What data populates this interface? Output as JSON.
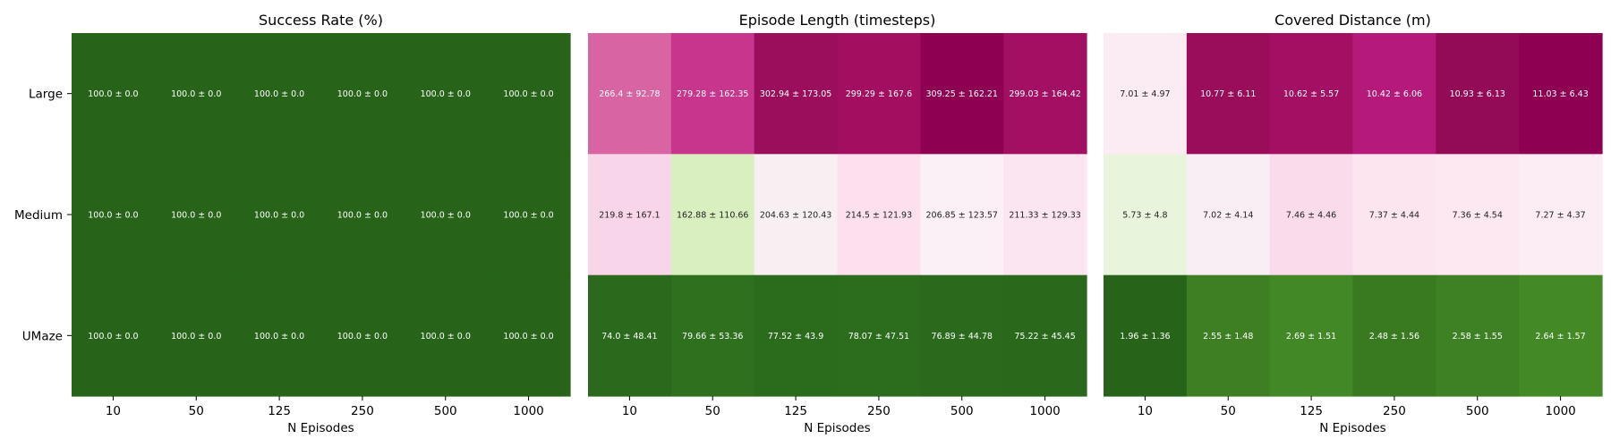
{
  "chart_data": [
    {
      "type": "heatmap",
      "title": "Success Rate (%)",
      "xlabel": "N Episodes",
      "ylabel": "",
      "categories": [
        "10",
        "50",
        "125",
        "250",
        "500",
        "1000"
      ],
      "rows": [
        "Large",
        "Medium",
        "UMaze"
      ],
      "cells": [
        [
          "100.0 ± 0.0",
          "100.0 ± 0.0",
          "100.0 ± 0.0",
          "100.0 ± 0.0",
          "100.0 ± 0.0",
          "100.0 ± 0.0"
        ],
        [
          "100.0 ± 0.0",
          "100.0 ± 0.0",
          "100.0 ± 0.0",
          "100.0 ± 0.0",
          "100.0 ± 0.0",
          "100.0 ± 0.0"
        ],
        [
          "100.0 ± 0.0",
          "100.0 ± 0.0",
          "100.0 ± 0.0",
          "100.0 ± 0.0",
          "100.0 ± 0.0",
          "100.0 ± 0.0"
        ]
      ],
      "colors": [
        [
          "#276419",
          "#276419",
          "#276419",
          "#276419",
          "#276419",
          "#276419"
        ],
        [
          "#276419",
          "#276419",
          "#276419",
          "#276419",
          "#276419",
          "#276419"
        ],
        [
          "#276419",
          "#276419",
          "#276419",
          "#276419",
          "#276419",
          "#276419"
        ]
      ],
      "text_colors": [
        [
          "#ffffff",
          "#ffffff",
          "#ffffff",
          "#ffffff",
          "#ffffff",
          "#ffffff"
        ],
        [
          "#ffffff",
          "#ffffff",
          "#ffffff",
          "#ffffff",
          "#ffffff",
          "#ffffff"
        ],
        [
          "#ffffff",
          "#ffffff",
          "#ffffff",
          "#ffffff",
          "#ffffff",
          "#ffffff"
        ]
      ],
      "colormap": "PiYG"
    },
    {
      "type": "heatmap",
      "title": "Episode Length (timesteps)",
      "xlabel": "N Episodes",
      "ylabel": "",
      "categories": [
        "10",
        "50",
        "125",
        "250",
        "500",
        "1000"
      ],
      "rows": [
        "Large",
        "Medium",
        "UMaze"
      ],
      "cells": [
        [
          "266.4 ± 92.78",
          "279.28 ± 162.35",
          "302.94 ± 173.05",
          "299.29 ± 167.6",
          "309.25 ± 162.21",
          "299.03 ± 164.42"
        ],
        [
          "219.8 ± 167.1",
          "162.88 ± 110.66",
          "204.63 ± 120.43",
          "214.5 ± 121.93",
          "206.85 ± 123.57",
          "211.33 ± 129.33"
        ],
        [
          "74.0 ± 48.41",
          "79.66 ± 53.36",
          "77.52 ± 43.9",
          "78.07 ± 47.51",
          "76.89 ± 44.78",
          "75.22 ± 45.45"
        ]
      ],
      "colors": [
        [
          "#d964a3",
          "#c8358d",
          "#9b0e5c",
          "#a20f61",
          "#8e0152",
          "#a30f62"
        ],
        [
          "#f9d5ea",
          "#d9efc0",
          "#f8eff3",
          "#fde0ee",
          "#faf0f5",
          "#fbe5f0"
        ],
        [
          "#2b6a1c",
          "#2e701e",
          "#2b6b1c",
          "#2c6c1d",
          "#2b6a1c",
          "#2a681b"
        ]
      ],
      "text_colors": [
        [
          "#ffffff",
          "#ffffff",
          "#ffffff",
          "#ffffff",
          "#ffffff",
          "#ffffff"
        ],
        [
          "#222222",
          "#222222",
          "#222222",
          "#222222",
          "#222222",
          "#222222"
        ],
        [
          "#ffffff",
          "#ffffff",
          "#ffffff",
          "#ffffff",
          "#ffffff",
          "#ffffff"
        ]
      ],
      "colormap": "PiYG"
    },
    {
      "type": "heatmap",
      "title": "Covered Distance (m)",
      "xlabel": "N Episodes",
      "ylabel": "",
      "categories": [
        "10",
        "50",
        "125",
        "250",
        "500",
        "1000"
      ],
      "rows": [
        "Large",
        "Medium",
        "UMaze"
      ],
      "cells": [
        [
          "7.01 ± 4.97",
          "10.77 ± 6.11",
          "10.62 ± 5.57",
          "10.42 ± 6.06",
          "10.93 ± 6.13",
          "11.03 ± 6.43"
        ],
        [
          "5.73 ± 4.8",
          "7.02 ± 4.14",
          "7.46 ± 4.46",
          "7.37 ± 4.44",
          "7.36 ± 4.54",
          "7.27 ± 4.37"
        ],
        [
          "1.96 ± 1.36",
          "2.55 ± 1.48",
          "2.69 ± 1.51",
          "2.48 ± 1.56",
          "2.58 ± 1.55",
          "2.64 ± 1.57"
        ]
      ],
      "colors": [
        [
          "#fbebf3",
          "#9a0d5b",
          "#a30f62",
          "#b5197a",
          "#930a56",
          "#8e0152"
        ],
        [
          "#e8f5dc",
          "#f9eef4",
          "#fadbeb",
          "#fde5f0",
          "#fde7f1",
          "#fcecf4"
        ],
        [
          "#276419",
          "#3e7f24",
          "#428826",
          "#397a21",
          "#3e8124",
          "#438a27"
        ]
      ],
      "text_colors": [
        [
          "#222222",
          "#ffffff",
          "#ffffff",
          "#ffffff",
          "#ffffff",
          "#ffffff"
        ],
        [
          "#222222",
          "#222222",
          "#222222",
          "#222222",
          "#222222",
          "#222222"
        ],
        [
          "#ffffff",
          "#ffffff",
          "#ffffff",
          "#ffffff",
          "#ffffff",
          "#ffffff"
        ]
      ],
      "colormap": "PiYG"
    }
  ]
}
